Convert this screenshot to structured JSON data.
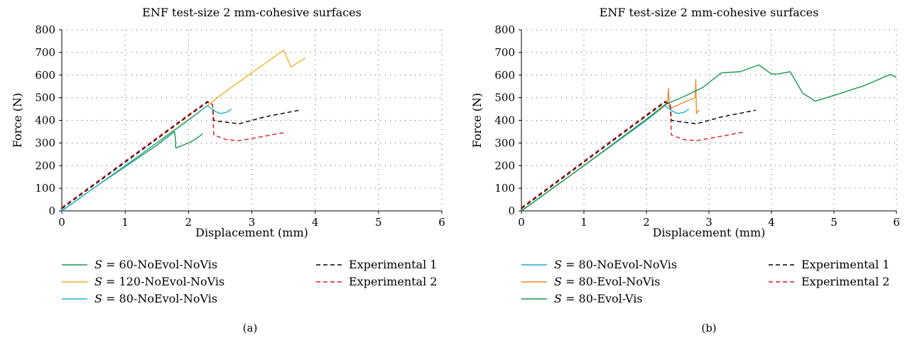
{
  "chart_data": [
    {
      "type": "line",
      "panel": "(a)",
      "title": "ENF test-size 2 mm-cohesive surfaces",
      "xlabel": "Displacement (mm)",
      "ylabel": "Force (N)",
      "xlim": [
        0,
        6
      ],
      "ylim": [
        0,
        800
      ],
      "xticks": [
        "0",
        "1",
        "2",
        "3",
        "4",
        "5",
        "6"
      ],
      "yticks": [
        "0",
        "100",
        "200",
        "300",
        "400",
        "500",
        "600",
        "700",
        "800"
      ],
      "grid": "dotted",
      "legend_position": "bottom",
      "series": [
        {
          "name": "S = 60-NoEvol-NoVis",
          "name_var": "S",
          "name_rest": " = 60-NoEvol-NoVis",
          "color": "#1a9850",
          "dash": "solid",
          "x": [
            0,
            0.5,
            1.0,
            1.5,
            1.78,
            1.79,
            1.8,
            2.0,
            2.1,
            2.2,
            2.22
          ],
          "y": [
            0,
            100,
            195,
            290,
            350,
            330,
            278,
            300,
            315,
            335,
            342
          ]
        },
        {
          "name": "S = 120-NoEvol-NoVis",
          "name_var": "S",
          "name_rest": " = 120-NoEvol-NoVis",
          "color": "#f0b429",
          "dash": "solid",
          "x": [
            0,
            1.0,
            2.0,
            2.3,
            2.5,
            3.0,
            3.5,
            3.62,
            3.75,
            3.85
          ],
          "y": [
            0,
            200,
            405,
            465,
            510,
            610,
            710,
            635,
            660,
            675
          ]
        },
        {
          "name": "S = 80-NoEvol-NoVis",
          "name_var": "S",
          "name_rest": " = 80-NoEvol-NoVis",
          "color": "#1ab2d8",
          "dash": "solid",
          "x": [
            0,
            1.0,
            2.0,
            2.3,
            2.42,
            2.5,
            2.6,
            2.68
          ],
          "y": [
            0,
            200,
            400,
            465,
            440,
            430,
            435,
            450
          ]
        },
        {
          "name": "Experimental 1",
          "color": "#000000",
          "dash": "6,4",
          "x": [
            0,
            1.0,
            2.0,
            2.3,
            2.38,
            2.4,
            2.5,
            2.8,
            3.2,
            3.75
          ],
          "y": [
            10,
            215,
            420,
            480,
            470,
            400,
            395,
            385,
            415,
            445
          ]
        },
        {
          "name": "Experimental 2",
          "color": "#e41a1c",
          "dash": "6,4",
          "x": [
            0,
            1.0,
            2.0,
            2.3,
            2.38,
            2.4,
            2.6,
            2.8,
            3.2,
            3.55
          ],
          "y": [
            15,
            220,
            425,
            485,
            470,
            335,
            315,
            310,
            330,
            348
          ]
        }
      ],
      "caption": "(a)"
    },
    {
      "type": "line",
      "panel": "(b)",
      "title": "ENF test-size 2 mm-cohesive surfaces",
      "xlabel": "Displacement (mm)",
      "ylabel": "Force (N)",
      "xlim": [
        0,
        6
      ],
      "ylim": [
        0,
        800
      ],
      "xticks": [
        "0",
        "1",
        "2",
        "3",
        "4",
        "5",
        "6"
      ],
      "yticks": [
        "0",
        "100",
        "200",
        "300",
        "400",
        "500",
        "600",
        "700",
        "800"
      ],
      "grid": "dotted",
      "legend_position": "bottom",
      "series": [
        {
          "name": "S = 80-NoEvol-NoVis",
          "name_var": "S",
          "name_rest": " = 80-NoEvol-NoVis",
          "color": "#1ab2d8",
          "dash": "solid",
          "x": [
            0,
            1.0,
            2.0,
            2.3,
            2.42,
            2.5,
            2.6,
            2.68
          ],
          "y": [
            0,
            200,
            400,
            465,
            440,
            430,
            435,
            450
          ]
        },
        {
          "name": "S = 80-Evol-NoVis",
          "name_var": "S",
          "name_rest": " = 80-Evol-NoVis",
          "color": "#f28a30",
          "dash": "solid",
          "x": [
            0,
            1.0,
            2.0,
            2.34,
            2.35,
            2.37,
            2.4,
            2.6,
            2.78,
            2.79,
            2.8,
            2.82,
            2.85
          ],
          "y": [
            0,
            200,
            405,
            475,
            540,
            460,
            455,
            480,
            500,
            580,
            430,
            440,
            445
          ]
        },
        {
          "name": "S = 80-Evol-Vis",
          "name_var": "S",
          "name_rest": " = 80-Evol-Vis",
          "color": "#1a9850",
          "dash": "solid",
          "x": [
            0,
            1.0,
            2.0,
            2.3,
            2.6,
            2.9,
            3.2,
            3.5,
            3.8,
            4.0,
            4.1,
            4.3,
            4.5,
            4.7,
            5.0,
            5.5,
            5.9,
            6.0
          ],
          "y": [
            0,
            200,
            405,
            470,
            505,
            545,
            610,
            615,
            645,
            605,
            605,
            615,
            520,
            485,
            510,
            555,
            603,
            590
          ]
        },
        {
          "name": "Experimental 1",
          "color": "#000000",
          "dash": "6,4",
          "x": [
            0,
            1.0,
            2.0,
            2.3,
            2.38,
            2.4,
            2.5,
            2.8,
            3.2,
            3.75
          ],
          "y": [
            10,
            215,
            420,
            480,
            470,
            400,
            395,
            385,
            415,
            445
          ]
        },
        {
          "name": "Experimental 2",
          "color": "#e41a1c",
          "dash": "6,4",
          "x": [
            0,
            1.0,
            2.0,
            2.3,
            2.38,
            2.4,
            2.6,
            2.8,
            3.2,
            3.55
          ],
          "y": [
            15,
            220,
            425,
            485,
            470,
            335,
            315,
            310,
            330,
            348
          ]
        }
      ],
      "caption": "(b)"
    }
  ]
}
